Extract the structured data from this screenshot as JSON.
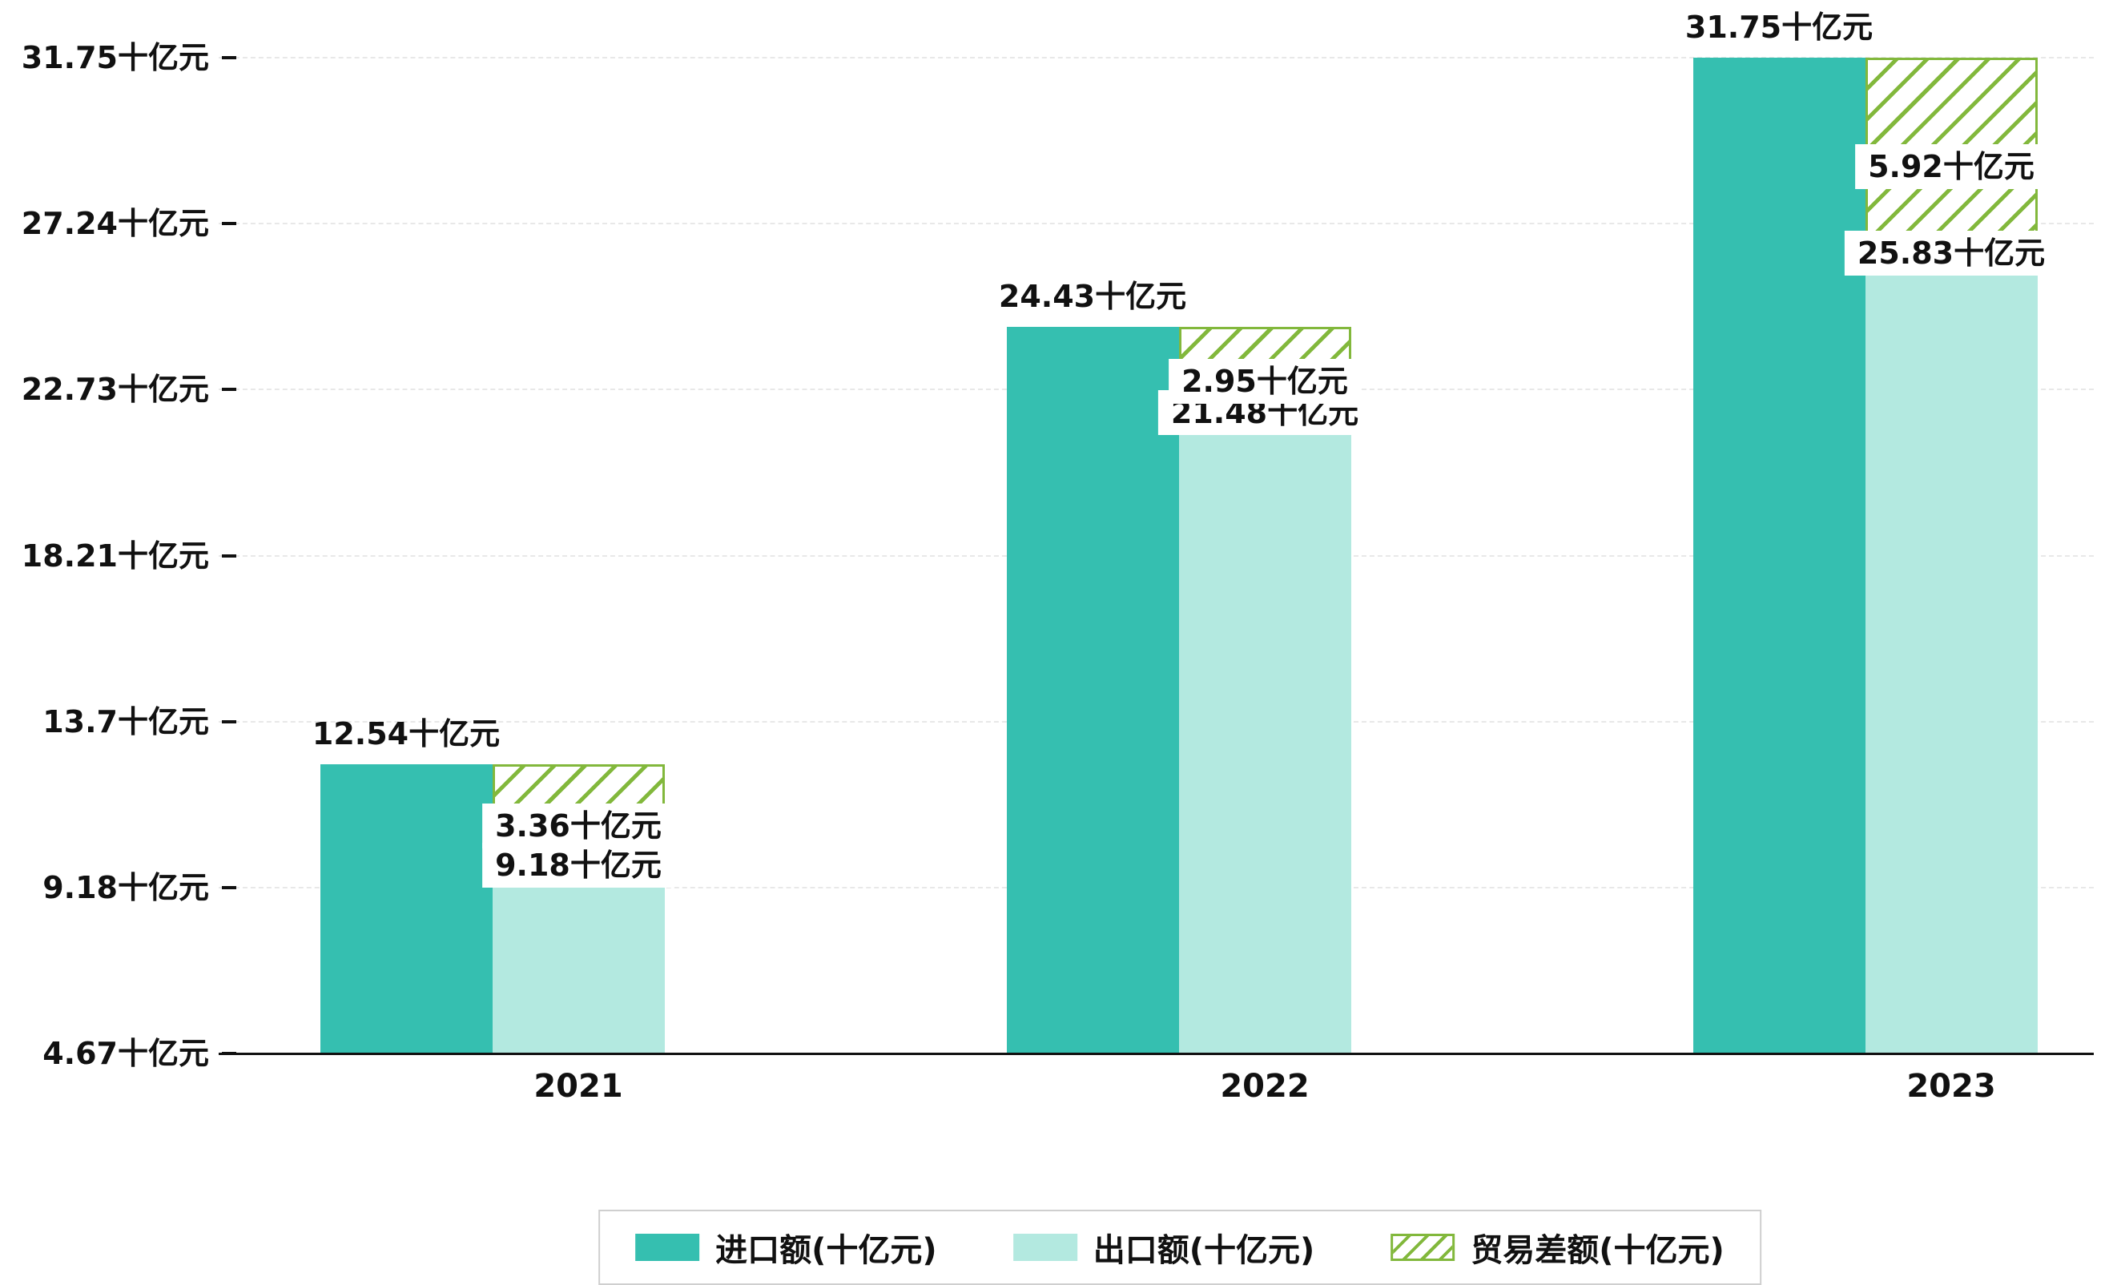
{
  "chart_data": {
    "type": "bar",
    "title": "",
    "categories": [
      "2021",
      "2022",
      "2023"
    ],
    "series": [
      {
        "name": "进口额(十亿元)",
        "values": [
          12.54,
          24.43,
          31.75
        ],
        "labels": [
          "12.54十亿元",
          "24.43十亿元",
          "31.75十亿元"
        ],
        "color": "#35bfb0",
        "style": "solid"
      },
      {
        "name": "出口额(十亿元)",
        "values": [
          9.18,
          21.48,
          25.83
        ],
        "labels": [
          "9.18十亿元",
          "21.48十亿元",
          "25.83十亿元"
        ],
        "color": "#b3e9e0",
        "style": "solid"
      },
      {
        "name": "贸易差额(十亿元)",
        "values": [
          3.36,
          2.95,
          5.92
        ],
        "labels": [
          "3.36十亿元",
          "2.95十亿元",
          "5.92十亿元"
        ],
        "color": "#82b83c",
        "style": "diagonal-hatch"
      }
    ],
    "y_axis": {
      "tick_labels": [
        "31.75十亿元",
        "27.24十亿元",
        "22.73十亿元",
        "18.21十亿元",
        "13.7十亿元",
        "9.18十亿元",
        "4.67十亿元"
      ],
      "tick_values": [
        31.75,
        27.24,
        22.73,
        18.21,
        13.7,
        9.18,
        4.67
      ],
      "min": 4.67,
      "max": 31.75
    },
    "unit": "十亿元",
    "grid": "horizontal-dashed",
    "legend_position": "bottom-center"
  },
  "colors": {
    "import_bar": "#35bfb0",
    "export_bar": "#b3e9e0",
    "balance_hatch": "#82b83c",
    "axis": "#111111",
    "gridline": "#e8e8e8",
    "label_text": "#111111",
    "label_box_background": "#ffffff",
    "legend_border": "#cfcfcf"
  }
}
